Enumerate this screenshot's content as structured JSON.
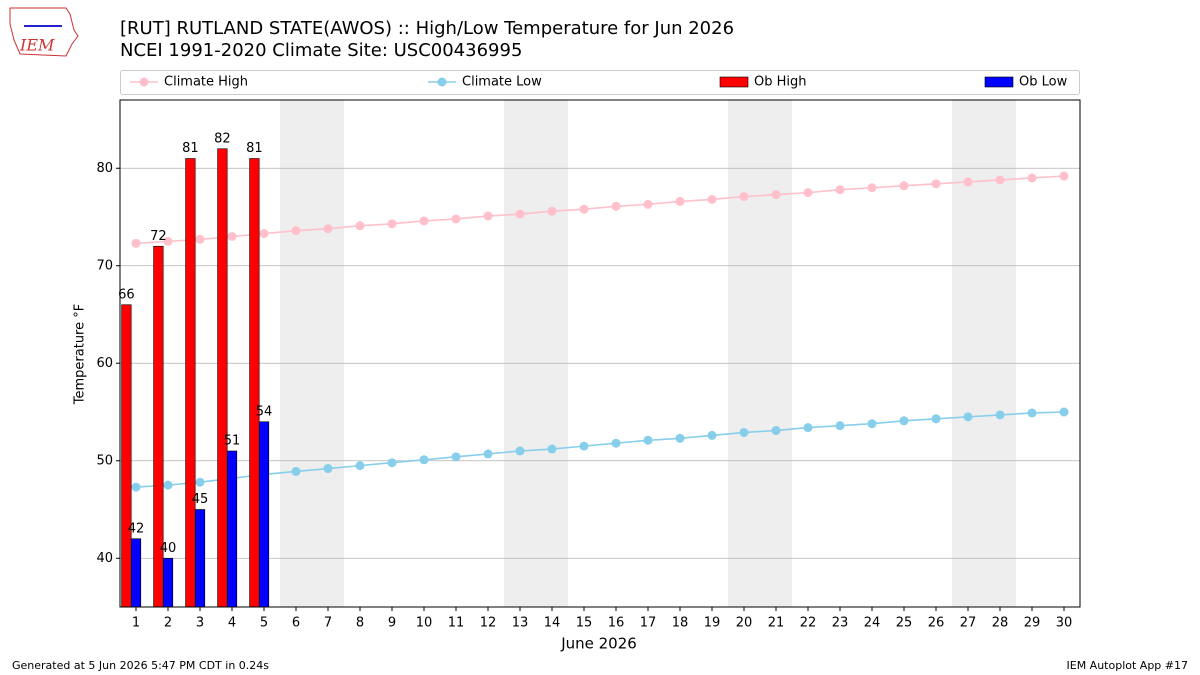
{
  "chart_data": {
    "type": "combo",
    "title": "[RUT] RUTLAND STATE(AWOS) :: High/Low Temperature for Jun 2026",
    "subtitle": "NCEI 1991-2020 Climate Site: USC00436995",
    "xlabel": "June 2026",
    "ylabel": "Temperature °F",
    "footer_left": "Generated at 5 Jun 2026 5:47 PM CDT in 0.24s",
    "footer_right": "IEM Autoplot App #17",
    "logo": "IEM",
    "x": [
      1,
      2,
      3,
      4,
      5,
      6,
      7,
      8,
      9,
      10,
      11,
      12,
      13,
      14,
      15,
      16,
      17,
      18,
      19,
      20,
      21,
      22,
      23,
      24,
      25,
      26,
      27,
      28,
      29,
      30
    ],
    "xlim": [
      0.5,
      30.5
    ],
    "xticks": [
      1,
      2,
      3,
      4,
      5,
      6,
      7,
      8,
      9,
      10,
      11,
      12,
      13,
      14,
      15,
      16,
      17,
      18,
      19,
      20,
      21,
      22,
      23,
      24,
      25,
      26,
      27,
      28,
      29,
      30
    ],
    "ylim": [
      35,
      87
    ],
    "yticks": [
      40,
      50,
      60,
      70,
      80
    ],
    "grid": true,
    "shaded_ranges": [
      [
        5.5,
        7.5
      ],
      [
        12.5,
        14.5
      ],
      [
        19.5,
        21.5
      ],
      [
        26.5,
        28.5
      ]
    ],
    "series": [
      {
        "name": "Climate High",
        "kind": "line",
        "color": "#ffc0cb",
        "values": [
          72.3,
          72.5,
          72.7,
          73.0,
          73.3,
          73.6,
          73.8,
          74.1,
          74.3,
          74.6,
          74.8,
          75.1,
          75.3,
          75.6,
          75.8,
          76.1,
          76.3,
          76.6,
          76.8,
          77.1,
          77.3,
          77.5,
          77.8,
          78.0,
          78.2,
          78.4,
          78.6,
          78.8,
          79.0,
          79.2
        ]
      },
      {
        "name": "Climate Low",
        "kind": "line",
        "color": "#87ceeb",
        "values": [
          47.3,
          47.5,
          47.8,
          48.2,
          48.6,
          48.9,
          49.2,
          49.5,
          49.8,
          50.1,
          50.4,
          50.7,
          51.0,
          51.2,
          51.5,
          51.8,
          52.1,
          52.3,
          52.6,
          52.9,
          53.1,
          53.4,
          53.6,
          53.8,
          54.1,
          54.3,
          54.5,
          54.7,
          54.9,
          55.0
        ]
      },
      {
        "name": "Ob High",
        "kind": "bar",
        "color": "#ff0000",
        "values": [
          66,
          72,
          81,
          82,
          81,
          null,
          null,
          null,
          null,
          null,
          null,
          null,
          null,
          null,
          null,
          null,
          null,
          null,
          null,
          null,
          null,
          null,
          null,
          null,
          null,
          null,
          null,
          null,
          null,
          null
        ]
      },
      {
        "name": "Ob Low",
        "kind": "bar",
        "color": "#0000ff",
        "values": [
          42,
          40,
          45,
          51,
          54,
          null,
          null,
          null,
          null,
          null,
          null,
          null,
          null,
          null,
          null,
          null,
          null,
          null,
          null,
          null,
          null,
          null,
          null,
          null,
          null,
          null,
          null,
          null,
          null,
          null
        ]
      }
    ]
  }
}
